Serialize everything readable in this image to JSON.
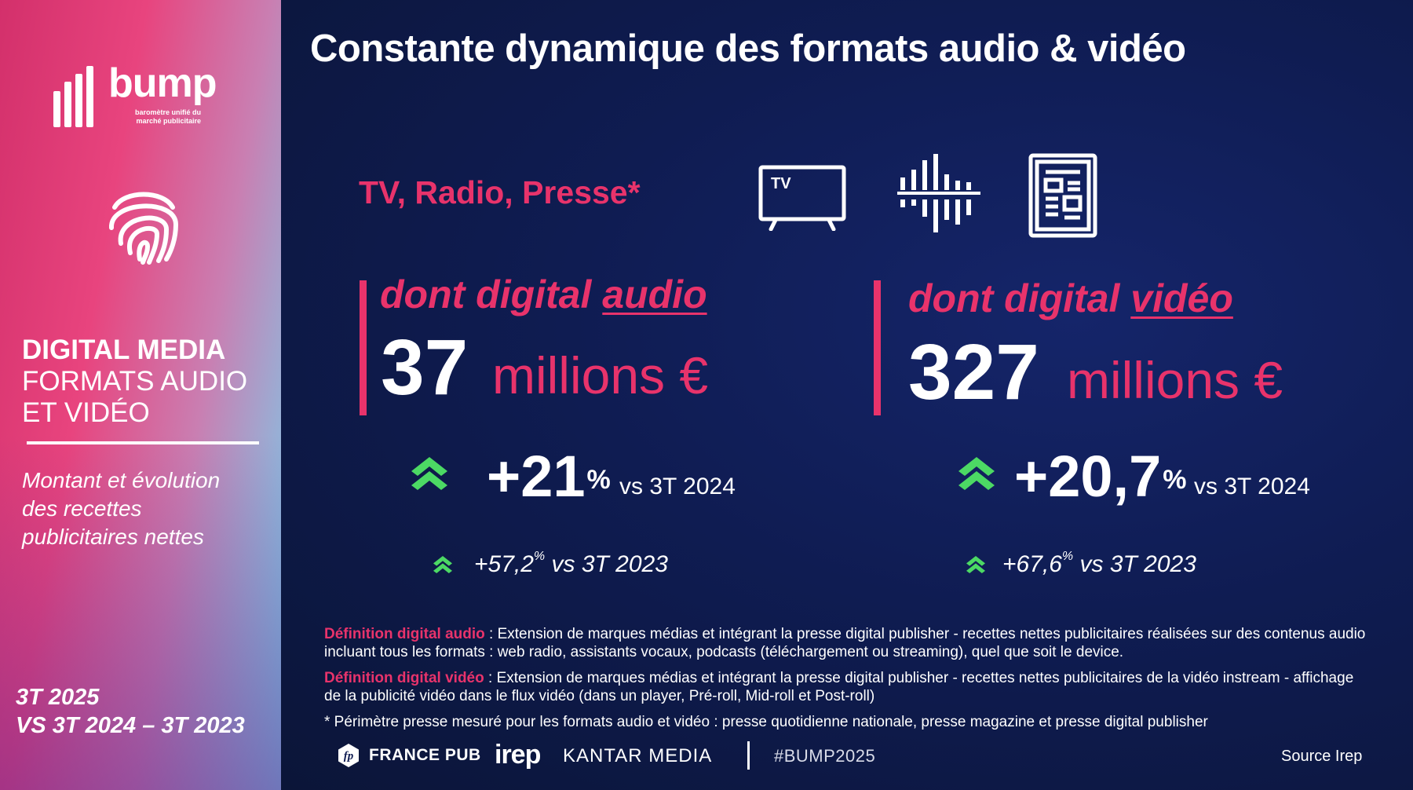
{
  "sidebar": {
    "brand_name": "bump",
    "brand_tagline": "baromètre unifié du marché publicitaire",
    "heading_bold": "DIGITAL MEDIA",
    "heading_light": "FORMATS AUDIO ET VIDÉO",
    "description": "Montant et évolution des recettes publicitaires nettes",
    "period_line1": "3T 2025",
    "period_line2": "VS 3T 2024 – 3T 2023"
  },
  "main": {
    "title": "Constante dynamique des formats audio & vidéo",
    "scope_label": "TV, Radio, Presse*",
    "media_icons": [
      "tv-icon",
      "radio-icon",
      "newspaper-icon"
    ],
    "tv_icon_text": "TV"
  },
  "panels": {
    "audio": {
      "label_prefix": "dont digital ",
      "label_keyword": "audio",
      "amount": "37",
      "unit": "millions €",
      "growth": "+21",
      "growth_unit": "%",
      "growth_vs": "vs 3T 2024",
      "growth2": "+57,2",
      "growth2_unit": "%",
      "growth2_vs": " vs 3T 2023"
    },
    "video": {
      "label_prefix": "dont digital ",
      "label_keyword": "vidéo",
      "amount": "327",
      "unit": "millions €",
      "growth": "+20,7",
      "growth_unit": "%",
      "growth_vs": "vs 3T 2024",
      "growth2": "+67,6",
      "growth2_unit": "%",
      "growth2_vs": " vs 3T 2023"
    }
  },
  "definitions": {
    "audio_label": "Définition digital audio",
    "audio_text": " : Extension de marques médias et intégrant la presse digital publisher - recettes nettes publicitaires réalisées sur des contenus audio incluant tous les formats : web radio, assistants vocaux, podcasts (téléchargement ou streaming), quel que soit le device.",
    "video_label": "Définition digital vidéo",
    "video_text": " : Extension de marques médias et intégrant la presse digital publisher - recettes nettes publicitaires de la vidéo instream - affichage de la publicité vidéo dans le flux vidéo (dans un player, Pré-roll, Mid-roll et Post-roll)",
    "footnote": "* Périmètre presse mesuré pour les formats audio et vidéo : presse quotidienne nationale, presse magazine et presse digital publisher"
  },
  "footer": {
    "france_pub_badge": "fp",
    "france_pub": "FRANCE PUB",
    "irep": "irep",
    "kantar": "KANTAR MEDIA",
    "hashtag": "#BUMP2025",
    "source": "Source Irep"
  },
  "colors": {
    "accent_pink": "#e8336b",
    "growth_green": "#4cd964",
    "background_navy": "#0f1c52"
  }
}
